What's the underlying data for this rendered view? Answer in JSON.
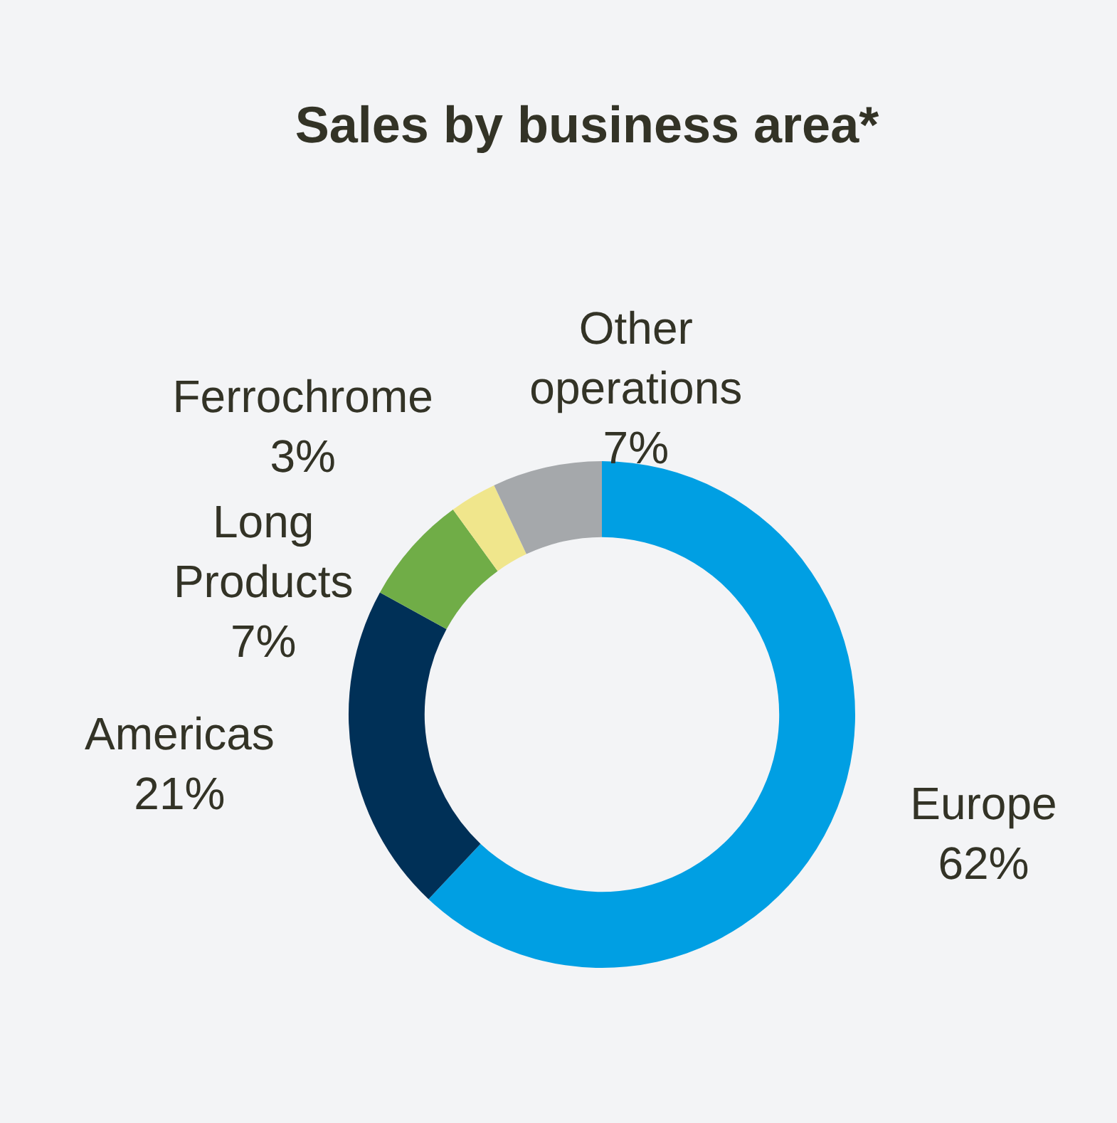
{
  "chart_data": {
    "type": "donut",
    "title": "Sales by business area*",
    "categories": [
      "Europe",
      "Americas",
      "Long Products",
      "Ferrochrome",
      "Other operations"
    ],
    "values": [
      62,
      21,
      7,
      3,
      7
    ],
    "colors": [
      "#009fe3",
      "#003057",
      "#70ad47",
      "#f0e68c",
      "#a5a8ab"
    ],
    "value_labels": [
      "62%",
      "21%",
      "7%",
      "3%",
      "7%"
    ],
    "legend": false
  }
}
